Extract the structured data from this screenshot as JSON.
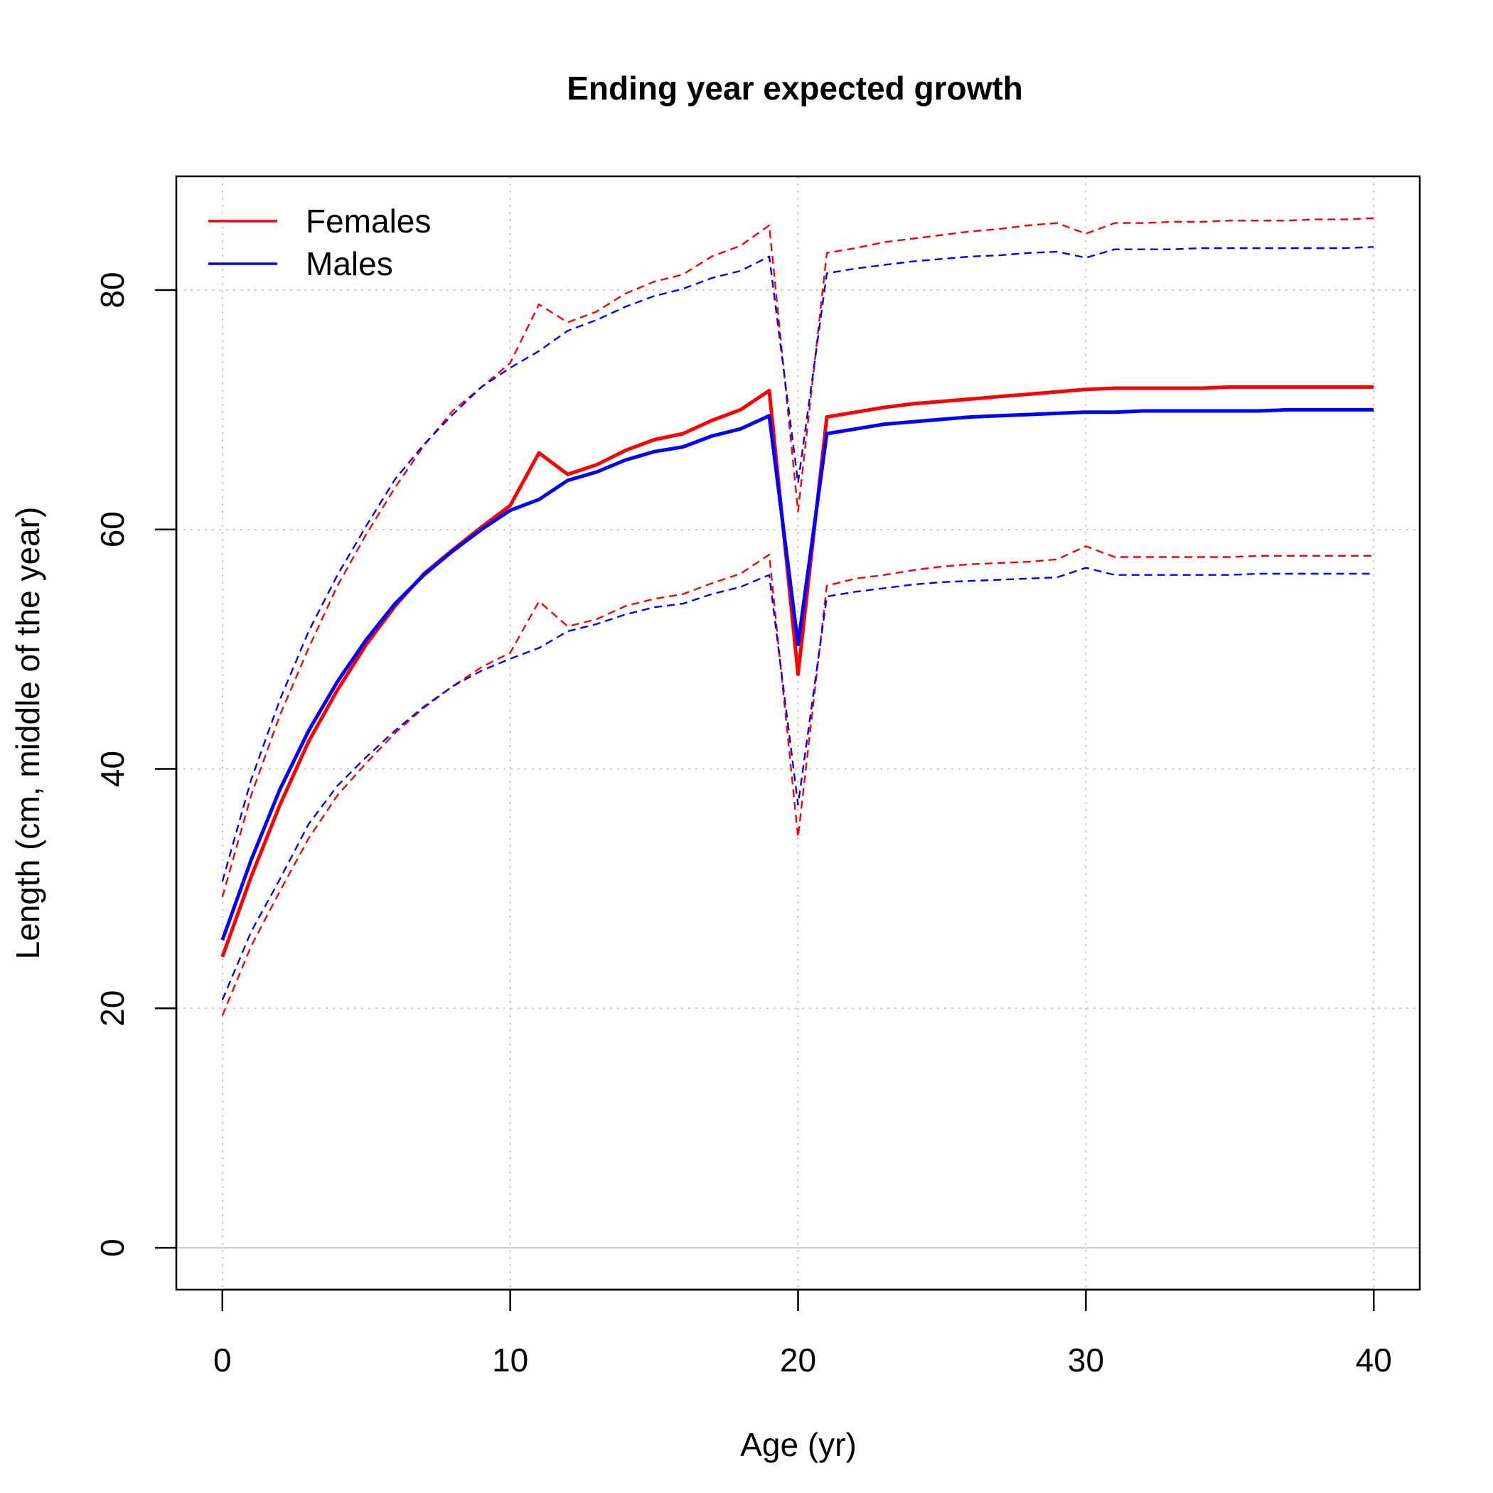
{
  "chart_data": {
    "type": "line",
    "title": "Ending year expected growth",
    "xlabel": "Age (yr)",
    "ylabel": "Length (cm, middle of the year)",
    "xlim": [
      -1.6,
      41.6
    ],
    "ylim": [
      -3.5,
      89.5
    ],
    "x_ticks": [
      0,
      10,
      20,
      30,
      40
    ],
    "y_ticks": [
      0,
      20,
      40,
      60,
      80
    ],
    "grid": true,
    "legend_position": "top-left",
    "colors": {
      "Females": "#ff0000",
      "Males": "#0000ff",
      "grid": "#c8c8c8"
    },
    "x": [
      0,
      1,
      2,
      3,
      4,
      5,
      6,
      7,
      8,
      9,
      10,
      11,
      12,
      13,
      14,
      15,
      16,
      17,
      18,
      19,
      20,
      21,
      22,
      23,
      24,
      25,
      26,
      27,
      28,
      29,
      30,
      31,
      32,
      33,
      34,
      35,
      36,
      37,
      38,
      39,
      40
    ],
    "series": [
      {
        "name": "Females",
        "color": "#ff0000",
        "style": "solid",
        "legend": true,
        "values": [
          24.3,
          31.0,
          37.0,
          42.3,
          46.6,
          50.4,
          53.6,
          56.3,
          58.3,
          60.2,
          62.0,
          66.4,
          64.6,
          65.4,
          66.6,
          67.5,
          68.0,
          69.1,
          70.0,
          71.6,
          47.9,
          69.4,
          69.8,
          70.2,
          70.5,
          70.7,
          70.9,
          71.1,
          71.3,
          71.5,
          71.7,
          71.8,
          71.8,
          71.8,
          71.8,
          71.9,
          71.9,
          71.9,
          71.9,
          71.9,
          71.9
        ]
      },
      {
        "name": "Males",
        "color": "#0000ff",
        "style": "solid",
        "legend": true,
        "values": [
          25.7,
          32.4,
          38.3,
          43.2,
          47.3,
          50.8,
          53.8,
          56.2,
          58.2,
          60.0,
          61.6,
          62.5,
          64.1,
          64.8,
          65.8,
          66.5,
          66.9,
          67.8,
          68.4,
          69.5,
          50.4,
          68.0,
          68.4,
          68.8,
          69.0,
          69.2,
          69.4,
          69.5,
          69.6,
          69.7,
          69.8,
          69.8,
          69.9,
          69.9,
          69.9,
          69.9,
          69.9,
          70.0,
          70.0,
          70.0,
          70.0
        ]
      },
      {
        "name": "",
        "color": "#ff0000",
        "style": "dashed",
        "legend": false,
        "values": [
          29.3,
          37.8,
          44.5,
          50.1,
          55.3,
          59.6,
          63.5,
          67.0,
          69.9,
          71.9,
          73.9,
          78.8,
          77.3,
          78.2,
          79.7,
          80.7,
          81.3,
          82.8,
          83.7,
          85.4,
          61.5,
          83.1,
          83.5,
          84.0,
          84.3,
          84.6,
          84.9,
          85.1,
          85.4,
          85.6,
          84.7,
          85.6,
          85.6,
          85.7,
          85.7,
          85.8,
          85.8,
          85.8,
          85.9,
          85.9,
          86.0
        ]
      },
      {
        "name": "",
        "color": "#ff0000",
        "style": "dashed",
        "legend": false,
        "values": [
          19.4,
          25.2,
          29.8,
          34.2,
          37.8,
          40.5,
          43.0,
          45.1,
          46.9,
          48.5,
          49.7,
          54.0,
          51.9,
          52.5,
          53.6,
          54.2,
          54.6,
          55.5,
          56.3,
          57.9,
          34.3,
          55.3,
          55.9,
          56.2,
          56.6,
          56.9,
          57.1,
          57.2,
          57.3,
          57.5,
          58.6,
          57.7,
          57.7,
          57.7,
          57.7,
          57.7,
          57.8,
          57.8,
          57.8,
          57.8,
          57.8
        ]
      },
      {
        "name": "",
        "color": "#0000ff",
        "style": "dashed",
        "legend": false,
        "values": [
          30.6,
          39.1,
          45.8,
          51.5,
          56.2,
          60.3,
          64.2,
          67.1,
          69.6,
          71.9,
          73.5,
          74.9,
          76.6,
          77.5,
          78.6,
          79.5,
          80.1,
          81.0,
          81.6,
          82.8,
          63.9,
          81.4,
          81.8,
          82.1,
          82.4,
          82.6,
          82.8,
          82.9,
          83.1,
          83.2,
          82.7,
          83.4,
          83.4,
          83.4,
          83.5,
          83.5,
          83.5,
          83.5,
          83.5,
          83.5,
          83.6
        ]
      },
      {
        "name": "",
        "color": "#0000ff",
        "style": "dashed",
        "legend": false,
        "values": [
          20.7,
          26.4,
          30.8,
          35.4,
          38.6,
          41.0,
          43.2,
          45.2,
          46.9,
          48.2,
          49.2,
          50.1,
          51.5,
          52.1,
          52.9,
          53.5,
          53.8,
          54.6,
          55.2,
          56.2,
          37.0,
          54.4,
          54.8,
          55.1,
          55.4,
          55.6,
          55.7,
          55.8,
          55.9,
          56.0,
          56.8,
          56.2,
          56.2,
          56.2,
          56.2,
          56.2,
          56.3,
          56.3,
          56.3,
          56.3,
          56.3
        ]
      }
    ]
  }
}
